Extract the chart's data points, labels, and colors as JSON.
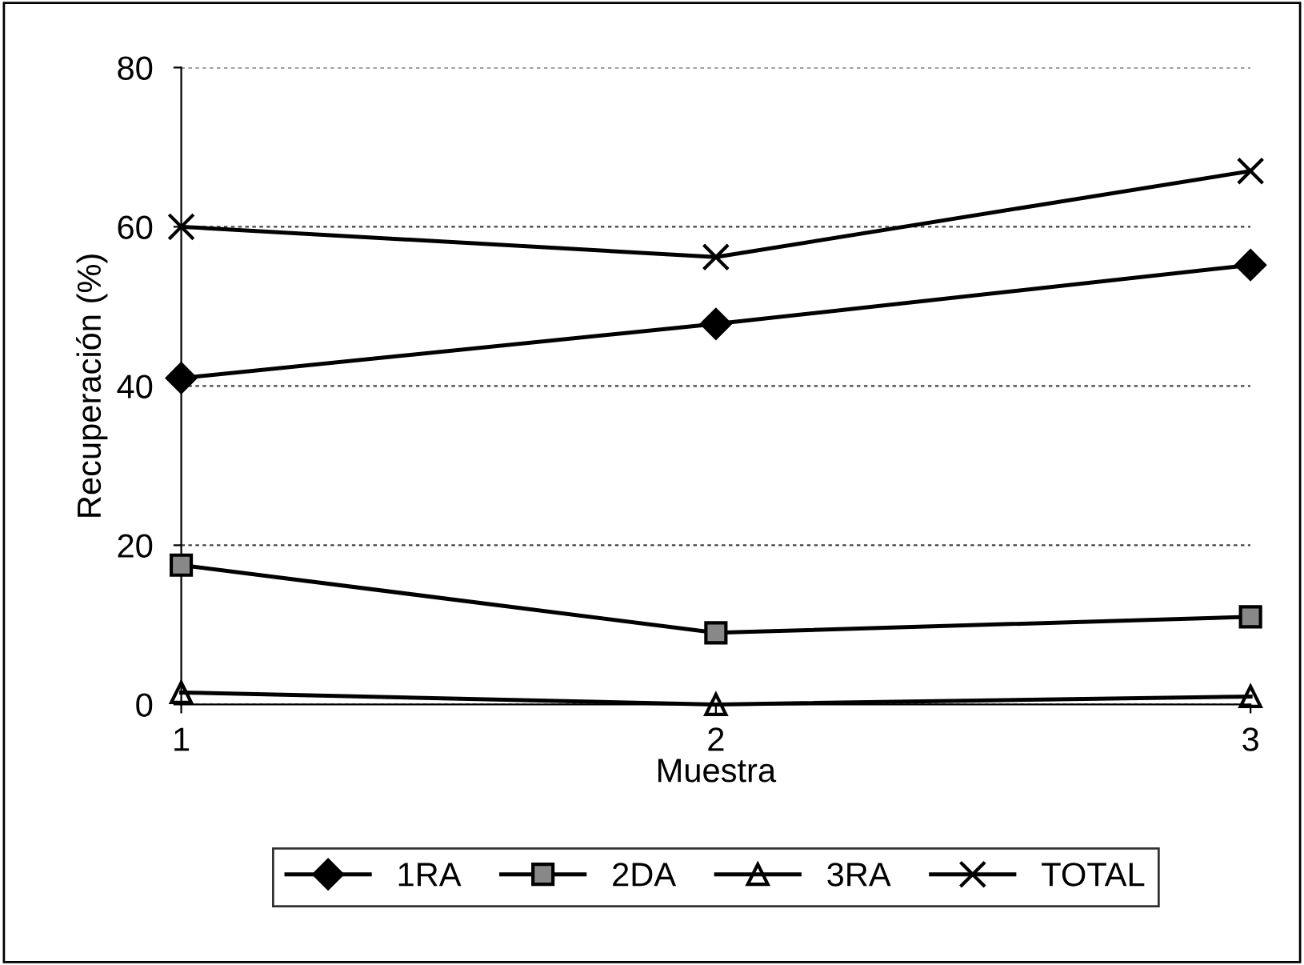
{
  "chart_data": {
    "type": "line",
    "xlabel": "Muestra",
    "ylabel": "Recuperación (%)",
    "x": [
      1,
      2,
      3
    ],
    "xlim": [
      1,
      3
    ],
    "xticks": [
      1,
      2,
      3
    ],
    "ylim": [
      0,
      80
    ],
    "yticks": [
      0,
      20,
      40,
      60,
      80
    ],
    "grid": "y",
    "legend": "bottom",
    "series": [
      {
        "name": "1RA",
        "color": "#000000",
        "marker": "diamond",
        "values": [
          41,
          47.8,
          55.2
        ]
      },
      {
        "name": "2DA",
        "color": "#000000",
        "marker": "square",
        "values": [
          17.5,
          9,
          11
        ]
      },
      {
        "name": "3RA",
        "color": "#000000",
        "marker": "triangle",
        "values": [
          1.5,
          0,
          1
        ]
      },
      {
        "name": "TOTAL",
        "color": "#000000",
        "marker": "cross",
        "values": [
          60,
          56.2,
          67
        ]
      }
    ]
  }
}
